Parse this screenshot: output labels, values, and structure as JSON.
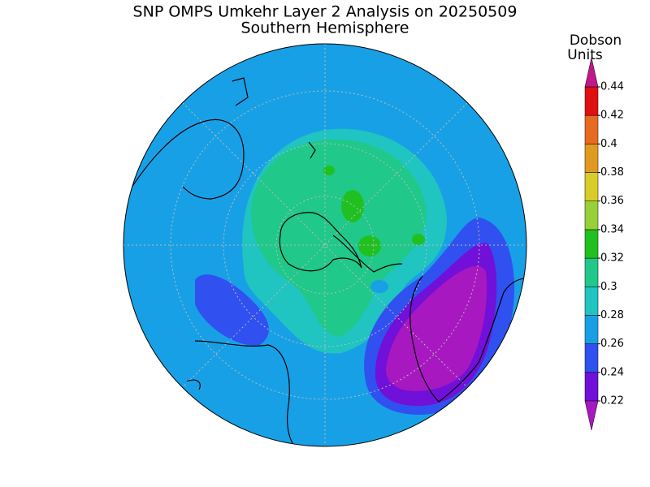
{
  "header": {
    "title": "SNP OMPS Umkehr Layer 2 Analysis on 20250509",
    "subtitle": "Southern Hemisphere"
  },
  "colorbar": {
    "label_lines": [
      "Dobson",
      "Units"
    ],
    "ticks": [
      0.22,
      0.24,
      0.26,
      0.28,
      0.3,
      0.32,
      0.34,
      0.36,
      0.38,
      0.4,
      0.42,
      0.44
    ],
    "colors": [
      "#7010d8",
      "#3050f0",
      "#18a0e6",
      "#20c4c0",
      "#20c88a",
      "#20c020",
      "#98d038",
      "#d8cc28",
      "#e09a20",
      "#e86a20",
      "#e01010"
    ],
    "under_color": "#a818c0",
    "over_color": "#c0188a"
  }
}
